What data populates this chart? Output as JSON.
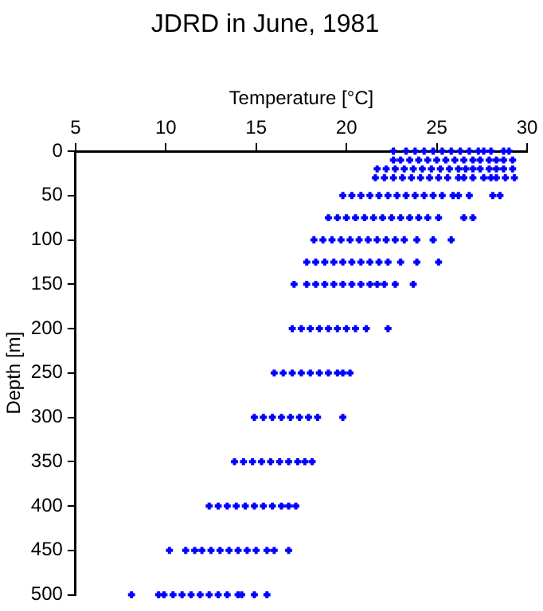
{
  "chart_data": {
    "type": "scatter",
    "title": "JDRD in June, 1981",
    "xlabel": "Temperature [°C]",
    "ylabel": "Depth [m]",
    "xlim": [
      5,
      30
    ],
    "xticks": [
      5,
      10,
      15,
      20,
      25,
      30
    ],
    "ylim": [
      500,
      0
    ],
    "yticks": [
      0,
      50,
      100,
      150,
      200,
      250,
      300,
      350,
      400,
      450,
      500
    ],
    "grid": false,
    "legend": false,
    "marker": "cross",
    "series": [
      {
        "color": "#0000ff",
        "x": [
          22.6,
          23.3,
          23.8,
          24.3,
          24.8,
          25.3,
          25.8,
          26.3,
          26.8,
          27.3,
          27.6,
          28.0,
          28.7,
          29.0
        ],
        "values": [
          0,
          0,
          0,
          0,
          0,
          0,
          0,
          0,
          0,
          0,
          0,
          0,
          0,
          0
        ]
      },
      {
        "color": "#0000ff",
        "x": [
          22.6,
          23.0,
          23.5,
          24.0,
          24.5,
          25.0,
          25.5,
          26.0,
          26.5,
          27.0,
          27.4,
          27.9,
          28.3,
          28.7,
          29.2
        ],
        "values": [
          10,
          10,
          10,
          10,
          10,
          10,
          10,
          10,
          10,
          10,
          10,
          10,
          10,
          10,
          10
        ]
      },
      {
        "color": "#0000ff",
        "x": [
          21.7,
          22.2,
          22.7,
          23.2,
          23.7,
          24.2,
          24.7,
          25.2,
          25.7,
          26.2,
          26.6,
          27.0,
          27.4,
          27.9,
          28.3,
          28.7,
          29.2
        ],
        "values": [
          20,
          20,
          20,
          20,
          20,
          20,
          20,
          20,
          20,
          20,
          20,
          20,
          20,
          20,
          20,
          20,
          20
        ]
      },
      {
        "color": "#0000ff",
        "x": [
          21.6,
          22.1,
          22.6,
          23.1,
          23.6,
          24.1,
          24.6,
          25.1,
          25.6,
          26.2,
          26.5,
          27.0,
          27.6,
          28.0,
          28.3,
          28.8,
          29.3
        ],
        "values": [
          30,
          30,
          30,
          30,
          30,
          30,
          30,
          30,
          30,
          30,
          30,
          30,
          30,
          30,
          30,
          30,
          30
        ]
      },
      {
        "color": "#0000ff",
        "x": [
          19.8,
          20.3,
          20.8,
          21.3,
          21.8,
          22.3,
          22.8,
          23.3,
          23.8,
          24.3,
          24.8,
          25.3,
          25.9,
          26.2,
          26.8,
          28.1,
          28.5
        ],
        "values": [
          50,
          50,
          50,
          50,
          50,
          50,
          50,
          50,
          50,
          50,
          50,
          50,
          50,
          50,
          50,
          50,
          50
        ]
      },
      {
        "color": "#0000ff",
        "x": [
          19.0,
          19.5,
          20.0,
          20.5,
          21.0,
          21.5,
          22.0,
          22.5,
          23.0,
          23.5,
          24.0,
          24.5,
          25.1,
          26.5,
          27.0
        ],
        "values": [
          75,
          75,
          75,
          75,
          75,
          75,
          75,
          75,
          75,
          75,
          75,
          75,
          75,
          75,
          75
        ]
      },
      {
        "color": "#0000ff",
        "x": [
          18.2,
          18.7,
          19.2,
          19.7,
          20.2,
          20.7,
          21.2,
          21.7,
          22.2,
          22.7,
          23.2,
          23.9,
          24.8,
          25.8
        ],
        "values": [
          100,
          100,
          100,
          100,
          100,
          100,
          100,
          100,
          100,
          100,
          100,
          100,
          100,
          100
        ]
      },
      {
        "color": "#0000ff",
        "x": [
          17.8,
          18.3,
          18.8,
          19.3,
          19.8,
          20.3,
          20.8,
          21.3,
          21.8,
          22.3,
          23.0,
          23.9,
          25.1
        ],
        "values": [
          125,
          125,
          125,
          125,
          125,
          125,
          125,
          125,
          125,
          125,
          125,
          125,
          125
        ]
      },
      {
        "color": "#0000ff",
        "x": [
          17.1,
          17.8,
          18.3,
          18.8,
          19.3,
          19.8,
          20.3,
          20.8,
          21.3,
          21.7,
          22.1,
          22.7,
          23.7
        ],
        "values": [
          150,
          150,
          150,
          150,
          150,
          150,
          150,
          150,
          150,
          150,
          150,
          150,
          150
        ]
      },
      {
        "color": "#0000ff",
        "x": [
          17.0,
          17.5,
          18.0,
          18.5,
          19.0,
          19.5,
          20.0,
          20.5,
          21.1,
          22.3
        ],
        "values": [
          200,
          200,
          200,
          200,
          200,
          200,
          200,
          200,
          200,
          200
        ]
      },
      {
        "color": "#0000ff",
        "x": [
          16.0,
          16.5,
          17.0,
          17.5,
          18.0,
          18.5,
          19.0,
          19.5,
          19.8,
          20.2
        ],
        "values": [
          250,
          250,
          250,
          250,
          250,
          250,
          250,
          250,
          250,
          250
        ]
      },
      {
        "color": "#0000ff",
        "x": [
          14.9,
          15.4,
          15.9,
          16.4,
          16.9,
          17.4,
          17.9,
          18.4,
          19.8
        ],
        "values": [
          300,
          300,
          300,
          300,
          300,
          300,
          300,
          300,
          300
        ]
      },
      {
        "color": "#0000ff",
        "x": [
          13.8,
          14.3,
          14.8,
          15.3,
          15.8,
          16.3,
          16.8,
          17.3,
          17.7,
          18.1
        ],
        "values": [
          350,
          350,
          350,
          350,
          350,
          350,
          350,
          350,
          350,
          350
        ]
      },
      {
        "color": "#0000ff",
        "x": [
          12.4,
          12.9,
          13.4,
          13.9,
          14.4,
          14.9,
          15.4,
          15.9,
          16.4,
          16.8,
          17.2
        ],
        "values": [
          400,
          400,
          400,
          400,
          400,
          400,
          400,
          400,
          400,
          400,
          400
        ]
      },
      {
        "color": "#0000ff",
        "x": [
          10.2,
          11.1,
          11.6,
          12.0,
          12.5,
          13.0,
          13.5,
          14.0,
          14.5,
          15.0,
          15.6,
          16.0,
          16.8
        ],
        "values": [
          450,
          450,
          450,
          450,
          450,
          450,
          450,
          450,
          450,
          450,
          450,
          450,
          450
        ]
      },
      {
        "color": "#0000ff",
        "x": [
          8.1,
          9.6,
          9.9,
          10.4,
          10.9,
          11.4,
          11.9,
          12.4,
          12.9,
          13.4,
          14.0,
          14.2,
          14.9,
          15.6
        ],
        "values": [
          500,
          500,
          500,
          500,
          500,
          500,
          500,
          500,
          500,
          500,
          500,
          500,
          500,
          500
        ]
      }
    ]
  }
}
